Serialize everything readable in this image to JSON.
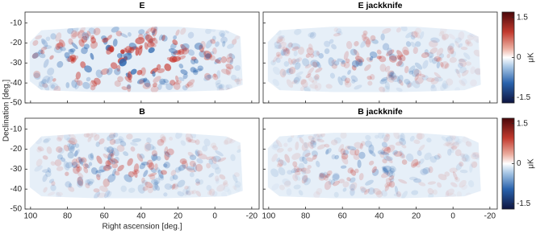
{
  "chart_data": [
    {
      "type": "heatmap",
      "title": "E",
      "xlim": [
        103,
        -24
      ],
      "ylim": [
        -50,
        -4.5
      ],
      "xticks": [
        100,
        80,
        60,
        40,
        20,
        0,
        -20
      ],
      "yticks": [
        -10,
        -20,
        -30,
        -40,
        -50
      ]
    },
    {
      "type": "heatmap",
      "title": "E jackknife",
      "xlim": [
        103,
        -24
      ],
      "ylim": [
        -50,
        -4.5
      ],
      "xticks": [
        100,
        80,
        60,
        40,
        20,
        0,
        -20
      ],
      "yticks": [
        -10,
        -20,
        -30,
        -40,
        -50
      ],
      "colorbar": {
        "lim": [
          -1.7,
          1.7
        ],
        "ticks": [
          1.5,
          0,
          -1.5
        ],
        "label": "μK"
      }
    },
    {
      "type": "heatmap",
      "title": "B",
      "xlim": [
        103,
        -24
      ],
      "ylim": [
        -50,
        -4.5
      ],
      "xticks": [
        100,
        80,
        60,
        40,
        20,
        0,
        -20
      ],
      "yticks": [
        -10,
        -20,
        -30,
        -40,
        -50
      ],
      "xlabel": "Right ascension [deg.]",
      "ylabel": "Declination [deg.]"
    },
    {
      "type": "heatmap",
      "title": "B jackknife",
      "xlim": [
        103,
        -24
      ],
      "ylim": [
        -50,
        -4.5
      ],
      "xticks": [
        100,
        80,
        60,
        40,
        20,
        0,
        -20
      ],
      "yticks": [
        -10,
        -20,
        -30,
        -40,
        -50
      ],
      "colorbar": {
        "lim": [
          -1.7,
          1.7
        ],
        "ticks": [
          1.5,
          0,
          -1.5
        ],
        "label": "μK"
      }
    }
  ]
}
